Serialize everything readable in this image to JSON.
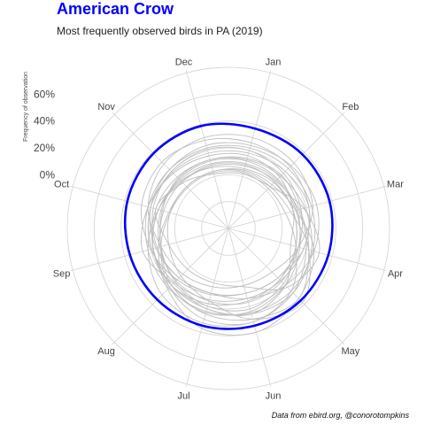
{
  "chart_data": {
    "type": "line",
    "coordinate_system": "polar",
    "title": "American Crow",
    "subtitle": "Most frequently observed birds in PA (2019)",
    "ylabel": "Frequency of observation",
    "caption": "Data from ebird.org, @conorotompkins",
    "categories": [
      "Jan",
      "Feb",
      "Mar",
      "Apr",
      "May",
      "Jun",
      "Jul",
      "Aug",
      "Sep",
      "Oct",
      "Nov",
      "Dec"
    ],
    "radial_ticks": [
      "0%",
      "20%",
      "40%",
      "60%"
    ],
    "ylim": [
      -0.4,
      0.82
    ],
    "highlight_color": "#0000ff",
    "background_series_color": "#bebebe",
    "grid": true,
    "highlight_series": {
      "name": "American Crow",
      "values": [
        0.37,
        0.38,
        0.38,
        0.37,
        0.36,
        0.35,
        0.35,
        0.35,
        0.36,
        0.38,
        0.39,
        0.39
      ]
    },
    "background_series": [
      {
        "values": [
          0.14,
          0.16,
          0.15,
          0.22,
          0.34,
          0.3,
          0.26,
          0.2,
          0.12,
          0.11,
          0.13,
          0.13
        ]
      },
      {
        "values": [
          0.3,
          0.29,
          0.25,
          0.14,
          0.06,
          0.04,
          0.05,
          0.08,
          0.12,
          0.22,
          0.28,
          0.3
        ]
      },
      {
        "values": [
          0.05,
          0.06,
          0.12,
          0.26,
          0.34,
          0.4,
          0.37,
          0.24,
          0.14,
          0.06,
          0.04,
          0.04
        ]
      },
      {
        "values": [
          0.22,
          0.23,
          0.24,
          0.25,
          0.26,
          0.25,
          0.24,
          0.23,
          0.22,
          0.22,
          0.22,
          0.22
        ]
      },
      {
        "values": [
          0.02,
          0.04,
          0.18,
          0.3,
          0.22,
          0.05,
          0.02,
          0.03,
          0.06,
          0.16,
          0.08,
          0.02
        ]
      },
      {
        "values": [
          0.18,
          0.2,
          0.22,
          0.18,
          0.15,
          0.14,
          0.15,
          0.17,
          0.19,
          0.2,
          0.19,
          0.18
        ]
      },
      {
        "values": [
          0.08,
          0.1,
          0.14,
          0.2,
          0.28,
          0.32,
          0.33,
          0.3,
          0.22,
          0.14,
          0.09,
          0.08
        ]
      },
      {
        "values": [
          0.26,
          0.25,
          0.22,
          0.18,
          0.12,
          0.1,
          0.11,
          0.14,
          0.2,
          0.27,
          0.3,
          0.28
        ]
      },
      {
        "values": [
          0.12,
          0.12,
          0.13,
          0.14,
          0.16,
          0.17,
          0.16,
          0.15,
          0.13,
          0.12,
          0.12,
          0.12
        ]
      },
      {
        "values": [
          0.04,
          0.04,
          0.08,
          0.22,
          0.38,
          0.3,
          0.16,
          0.1,
          0.06,
          0.05,
          0.04,
          0.04
        ]
      },
      {
        "values": [
          0.2,
          0.18,
          0.16,
          0.14,
          0.12,
          0.1,
          0.1,
          0.12,
          0.15,
          0.18,
          0.2,
          0.21
        ]
      },
      {
        "values": [
          0.1,
          0.11,
          0.12,
          0.15,
          0.2,
          0.24,
          0.25,
          0.22,
          0.18,
          0.14,
          0.11,
          0.1
        ]
      },
      {
        "values": [
          0.16,
          0.14,
          0.1,
          0.08,
          0.2,
          0.26,
          0.22,
          0.18,
          0.26,
          0.22,
          0.18,
          0.16
        ]
      },
      {
        "values": [
          0.06,
          0.08,
          0.1,
          0.12,
          0.14,
          0.16,
          0.18,
          0.2,
          0.18,
          0.14,
          0.1,
          0.07
        ]
      },
      {
        "values": [
          0.24,
          0.26,
          0.28,
          0.26,
          0.2,
          0.14,
          0.1,
          0.12,
          0.16,
          0.2,
          0.22,
          0.24
        ]
      },
      {
        "values": [
          0.09,
          0.09,
          0.1,
          0.12,
          0.18,
          0.22,
          0.2,
          0.16,
          0.12,
          0.1,
          0.09,
          0.09
        ]
      },
      {
        "values": [
          0.13,
          0.15,
          0.19,
          0.24,
          0.28,
          0.26,
          0.22,
          0.2,
          0.18,
          0.16,
          0.14,
          0.13
        ]
      },
      {
        "values": [
          0.03,
          0.02,
          0.04,
          0.12,
          0.26,
          0.32,
          0.3,
          0.22,
          0.12,
          0.05,
          0.03,
          0.03
        ]
      }
    ]
  }
}
